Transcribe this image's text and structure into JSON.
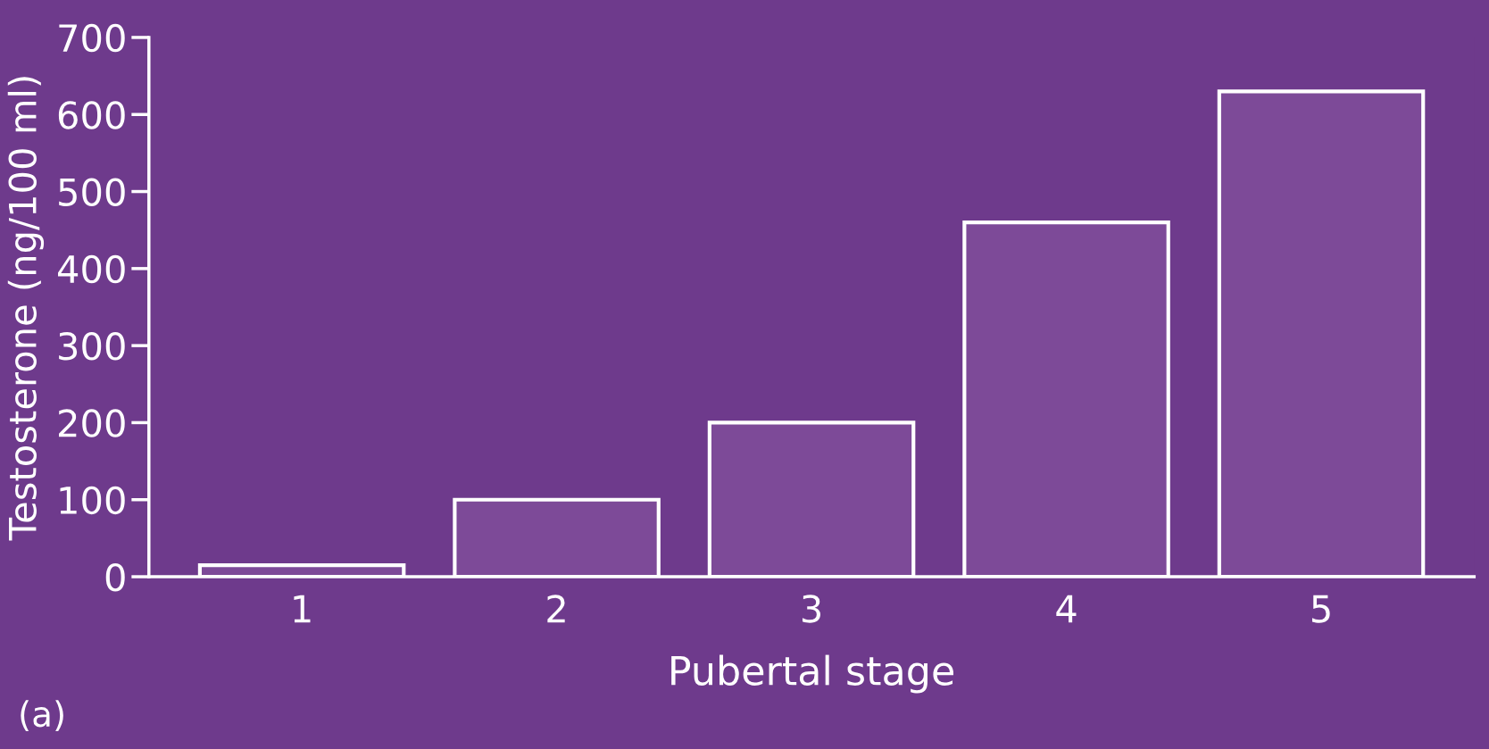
{
  "chart_data": {
    "type": "bar",
    "xlabel": "Pubertal stage",
    "ylabel": "Testosterone (ng/100 ml)",
    "categories": [
      "1",
      "2",
      "3",
      "4",
      "5"
    ],
    "values": [
      15,
      100,
      200,
      460,
      630
    ],
    "color": "#7d4a98",
    "ylim": [
      0,
      700
    ],
    "yticks": [
      0,
      100,
      200,
      300,
      400,
      500,
      600,
      700
    ],
    "grid": false,
    "annotations": [
      "(a)"
    ]
  }
}
